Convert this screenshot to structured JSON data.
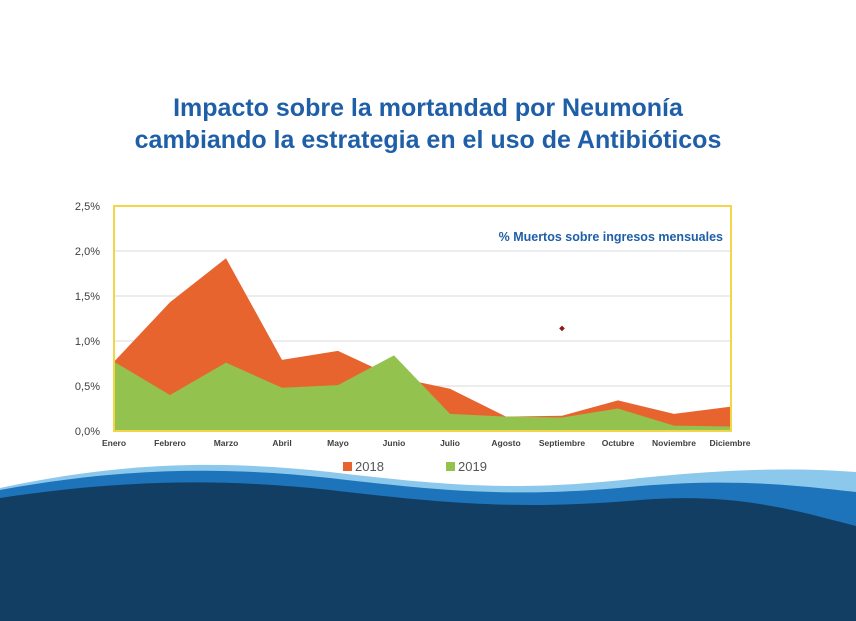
{
  "slide": {
    "title_line1": "Impacto sobre la mortandad por Neumonía",
    "title_line2": "cambiando la estrategia en el uso de Antibióticos"
  },
  "colors": {
    "title": "#1f5fa8",
    "series_2018": "#e8642e",
    "series_2019": "#93c24e",
    "plot_border": "#f3d54a",
    "gridline": "#d9d9d9",
    "wave_dark": "#123e63",
    "wave_mid": "#1d6fb5",
    "wave_light": "#6fb5e3",
    "marker": "#8b1a1a"
  },
  "chart_data": {
    "type": "area",
    "title": "% Muertos sobre ingresos mensuales",
    "xlabel": "",
    "ylabel": "",
    "categories": [
      "Enero",
      "Febrero",
      "Marzo",
      "Abril",
      "Mayo",
      "Junio",
      "Julio",
      "Agosto",
      "Septiembre",
      "Octubre",
      "Noviembre",
      "Diciembre"
    ],
    "ylim": [
      0,
      2.5
    ],
    "yticks": [
      "0,0%",
      "0,5%",
      "1,0%",
      "1,5%",
      "2,0%",
      "2,5%"
    ],
    "ytick_values": [
      0,
      0.5,
      1.0,
      1.5,
      2.0,
      2.5
    ],
    "grid": true,
    "legend_position": "bottom",
    "series": [
      {
        "name": "2018",
        "values": [
          0.77,
          1.43,
          1.92,
          0.79,
          0.89,
          0.6,
          0.47,
          0.16,
          0.17,
          0.34,
          0.19,
          0.27
        ]
      },
      {
        "name": "2019",
        "values": [
          0.77,
          0.4,
          0.76,
          0.48,
          0.51,
          0.84,
          0.19,
          0.16,
          0.15,
          0.25,
          0.06,
          0.05
        ]
      }
    ],
    "annotation_point": {
      "x": "Septiembre",
      "y": 1.14
    }
  }
}
